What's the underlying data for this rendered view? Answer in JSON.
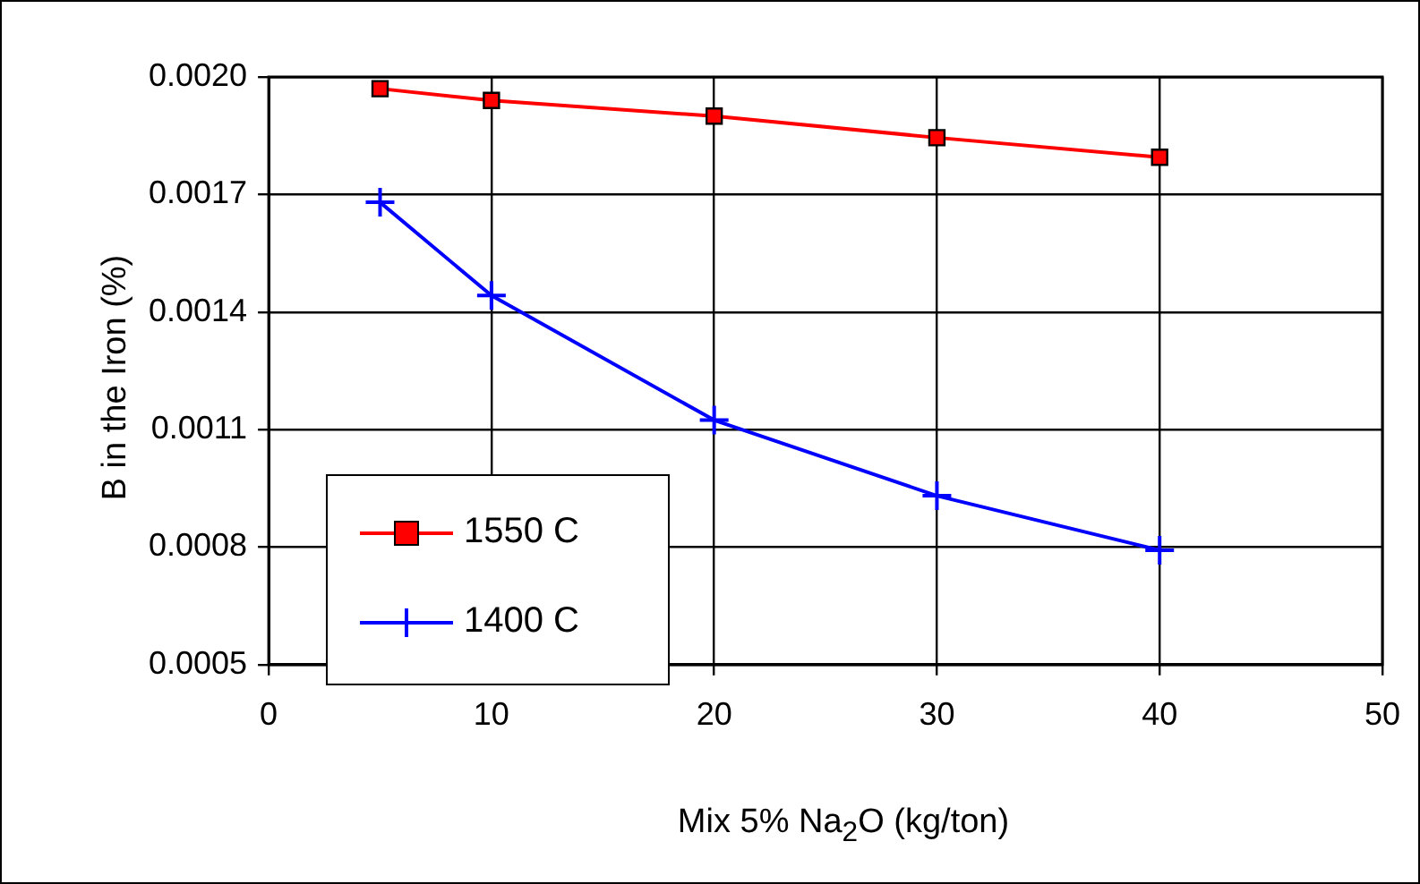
{
  "chart_data": {
    "type": "line",
    "xlabel": "Mix 5% Na$_{2}$O (kg/ton)",
    "ylabel": "B in the Iron (%)",
    "x": [
      5,
      10,
      20,
      30,
      40
    ],
    "series": [
      {
        "name": "1550 C",
        "color": "#ff0000",
        "marker": "square",
        "values": [
          0.00197,
          0.00194,
          0.0019,
          0.001845,
          0.001795
        ]
      },
      {
        "name": "1400 C",
        "color": "#0000ff",
        "marker": "cross",
        "values": [
          0.00168,
          0.001442,
          0.001124,
          0.000931,
          0.000792
        ]
      }
    ],
    "xlim": [
      0,
      50
    ],
    "xticks": [
      0,
      10,
      20,
      30,
      40,
      50
    ],
    "ylim": [
      0.0005,
      0.002
    ],
    "yticks": [
      {
        "value": 0.0005,
        "label": "0.0005"
      },
      {
        "value": 0.0008,
        "label": "0.0008"
      },
      {
        "value": 0.0011,
        "label": "0.0011"
      },
      {
        "value": 0.0014,
        "label": "0.0014"
      },
      {
        "value": 0.0017,
        "label": "0.0017"
      },
      {
        "value": 0.002,
        "label": "0.0020"
      }
    ],
    "grid": true,
    "legend": "bottom left"
  }
}
